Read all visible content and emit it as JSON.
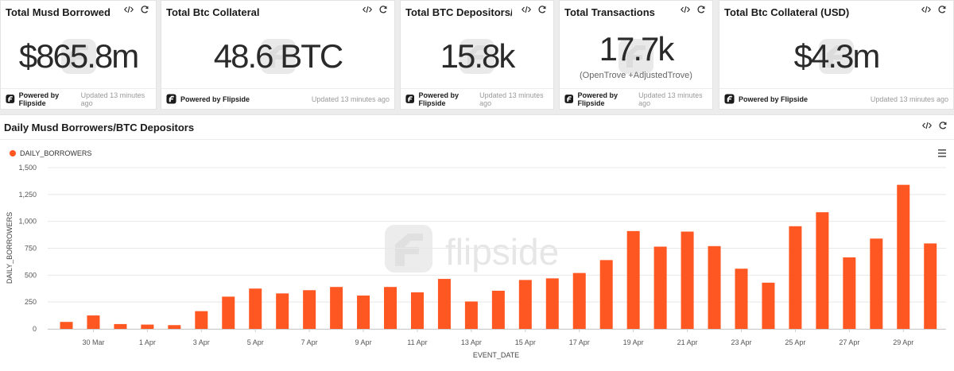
{
  "kpis": [
    {
      "title": "Total Musd Borrowed",
      "value": "$865.8m",
      "sub": ""
    },
    {
      "title": "Total Btc Collateral",
      "value": "48.6 BTC",
      "sub": ""
    },
    {
      "title": "Total BTC Depositors/ ...",
      "value": "15.8k",
      "sub": ""
    },
    {
      "title": "Total Transactions",
      "value": "17.7k",
      "sub": "(OpenTrove +AdjustedTrove)"
    },
    {
      "title": "Total Btc Collateral (USD)",
      "value": "$4.3m",
      "sub": ""
    }
  ],
  "footer": {
    "powered_label": "Powered by Flipside",
    "updated_text": "Updated 13 minutes ago"
  },
  "chart_panel": {
    "title": "Daily Musd Borrowers/BTC Depositors",
    "watermark": "flipside"
  },
  "icons": {
    "embed": "code-icon",
    "refresh": "refresh-icon",
    "menu": "hamburger-menu-icon",
    "brand": "flipside-logo-icon"
  },
  "colors": {
    "bar": "#ff5722",
    "text": "#1f1f1f"
  },
  "chart_data": {
    "type": "bar",
    "title": "",
    "xlabel": "EVENT_DATE",
    "ylabel": "DAILY_BORROWERS",
    "ylim": [
      0,
      1500
    ],
    "yticks": [
      0,
      250,
      500,
      750,
      1000,
      1250,
      1500
    ],
    "ytick_labels": [
      "0",
      "250",
      "500",
      "750",
      "1,000",
      "1,250",
      "1,500"
    ],
    "legend": "top-left",
    "grid": true,
    "categories": [
      "29 Mar",
      "30 Mar",
      "31 Mar",
      "1 Apr",
      "2 Apr",
      "3 Apr",
      "4 Apr",
      "5 Apr",
      "6 Apr",
      "7 Apr",
      "8 Apr",
      "9 Apr",
      "10 Apr",
      "11 Apr",
      "12 Apr",
      "13 Apr",
      "14 Apr",
      "15 Apr",
      "16 Apr",
      "17 Apr",
      "18 Apr",
      "19 Apr",
      "20 Apr",
      "21 Apr",
      "22 Apr",
      "23 Apr",
      "24 Apr",
      "25 Apr",
      "26 Apr",
      "27 Apr",
      "28 Apr",
      "29 Apr",
      "30 Apr"
    ],
    "tick_labels": [
      "30 Mar",
      "1 Apr",
      "3 Apr",
      "5 Apr",
      "7 Apr",
      "9 Apr",
      "11 Apr",
      "13 Apr",
      "15 Apr",
      "17 Apr",
      "19 Apr",
      "21 Apr",
      "23 Apr",
      "25 Apr",
      "27 Apr",
      "29 Apr"
    ],
    "series": [
      {
        "name": "DAILY_BORROWERS",
        "color": "#ff5722",
        "values": [
          65,
          125,
          45,
          40,
          35,
          165,
          300,
          375,
          330,
          360,
          390,
          310,
          390,
          340,
          465,
          255,
          355,
          455,
          470,
          520,
          640,
          910,
          765,
          905,
          770,
          560,
          430,
          955,
          1085,
          665,
          840,
          1340,
          795
        ]
      }
    ]
  }
}
